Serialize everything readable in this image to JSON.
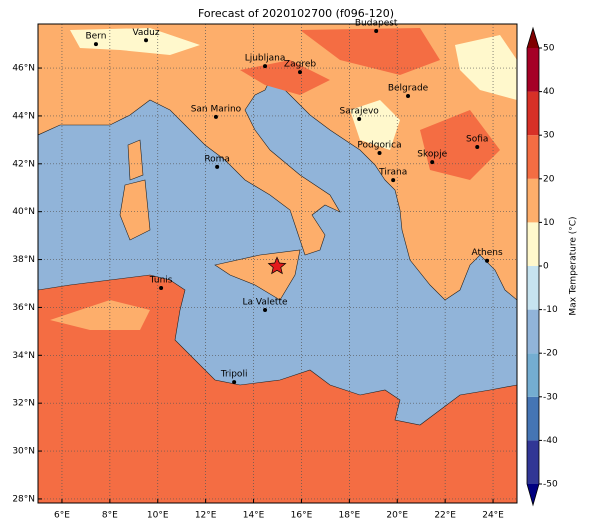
{
  "title": "Forecast of 2020102700 (f096-120)",
  "map": {
    "xlim": [
      5,
      25
    ],
    "ylim": [
      27.83,
      47.84
    ],
    "xticks": [
      {
        "value": 6,
        "label": "6°E"
      },
      {
        "value": 8,
        "label": "8°E"
      },
      {
        "value": 10,
        "label": "10°E"
      },
      {
        "value": 12,
        "label": "12°E"
      },
      {
        "value": 14,
        "label": "14°E"
      },
      {
        "value": 16,
        "label": "16°E"
      },
      {
        "value": 18,
        "label": "18°E"
      },
      {
        "value": 20,
        "label": "20°E"
      },
      {
        "value": 22,
        "label": "22°E"
      },
      {
        "value": 24,
        "label": "24°E"
      }
    ],
    "yticks": [
      {
        "value": 28,
        "label": "28°N"
      },
      {
        "value": 30,
        "label": "30°N"
      },
      {
        "value": 32,
        "label": "32°N"
      },
      {
        "value": 34,
        "label": "34°N"
      },
      {
        "value": 36,
        "label": "36°N"
      },
      {
        "value": 38,
        "label": "38°N"
      },
      {
        "value": 40,
        "label": "40°N"
      },
      {
        "value": 42,
        "label": "42°N"
      },
      {
        "value": 44,
        "label": "44°N"
      },
      {
        "value": 46,
        "label": "46°N"
      }
    ],
    "grid": true,
    "cities": [
      {
        "name": "Bern",
        "lon": 7.42,
        "lat": 47.0
      },
      {
        "name": "Vaduz",
        "lon": 9.51,
        "lat": 47.16
      },
      {
        "name": "Budapest",
        "lon": 19.12,
        "lat": 47.55
      },
      {
        "name": "Ljubljana",
        "lon": 14.48,
        "lat": 46.08
      },
      {
        "name": "Zagreb",
        "lon": 15.94,
        "lat": 45.83
      },
      {
        "name": "Belgrade",
        "lon": 20.45,
        "lat": 44.83
      },
      {
        "name": "San Marino",
        "lon": 12.43,
        "lat": 43.96
      },
      {
        "name": "Sarajevo",
        "lon": 18.41,
        "lat": 43.87
      },
      {
        "name": "Sofia",
        "lon": 23.34,
        "lat": 42.7
      },
      {
        "name": "Podgorica",
        "lon": 19.26,
        "lat": 42.45
      },
      {
        "name": "Skopje",
        "lon": 21.46,
        "lat": 42.07
      },
      {
        "name": "Roma",
        "lon": 12.48,
        "lat": 41.87
      },
      {
        "name": "Tirana",
        "lon": 19.83,
        "lat": 41.32
      },
      {
        "name": "Athens",
        "lon": 23.75,
        "lat": 37.95
      },
      {
        "name": "Tunis",
        "lon": 10.14,
        "lat": 36.81
      },
      {
        "name": "La Valette",
        "lon": 14.48,
        "lat": 35.89
      },
      {
        "name": "Tripoli",
        "lon": 13.19,
        "lat": 32.88
      }
    ],
    "marker": {
      "lon": 14.98,
      "lat": 37.72,
      "color": "#e31a1c"
    }
  },
  "colorbar": {
    "label": "Max Temperature (°C)",
    "ticks": [
      -50,
      -40,
      -30,
      -20,
      -10,
      0,
      10,
      20,
      30,
      40,
      50
    ],
    "colors": [
      "#313695",
      "#4575b4",
      "#74add1",
      "#91b4d9",
      "#c6e3ef",
      "#fff8cc",
      "#fdae6b",
      "#f46d43",
      "#d73027",
      "#a50026"
    ],
    "under": "#000080",
    "over": "#7f0000"
  }
}
